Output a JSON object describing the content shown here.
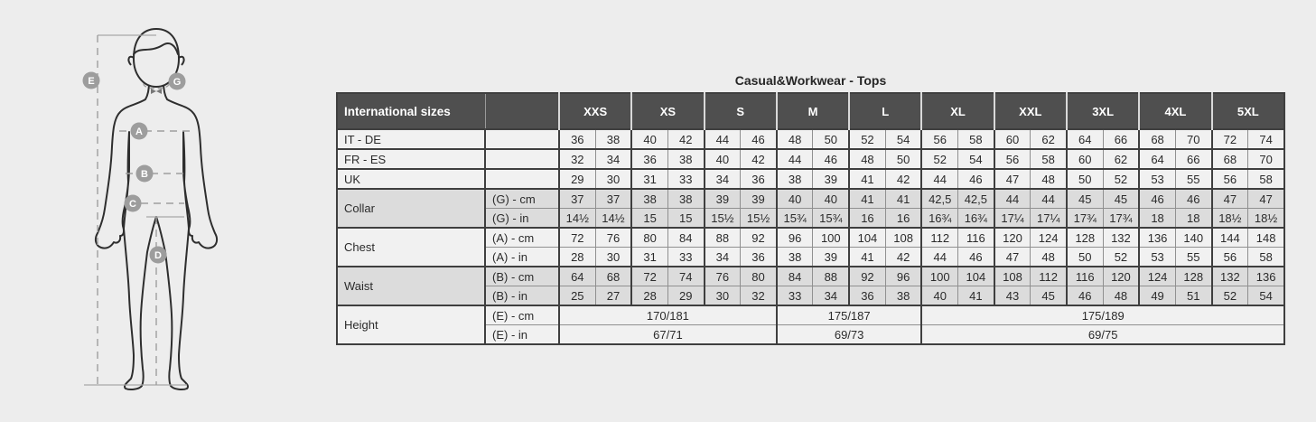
{
  "title": "Casual&Workwear - Tops",
  "colors": {
    "page_bg": "#ededed",
    "header_bg": "#4f4f4f",
    "header_text": "#ffffff",
    "row_light": "#f1f1f1",
    "row_dark": "#dcdcdc",
    "border_dark": "#3f3f3f",
    "border_light": "#909090",
    "figure_line": "#9e9e9e",
    "badge_bg": "#9d9d9d",
    "body_outline": "#2e2e2e"
  },
  "figure": {
    "badges": [
      {
        "letter": "E"
      },
      {
        "letter": "G"
      },
      {
        "letter": "A"
      },
      {
        "letter": "B"
      },
      {
        "letter": "C"
      },
      {
        "letter": "D"
      }
    ]
  },
  "table": {
    "corner_label": "International sizes",
    "sizes": [
      "XXS",
      "XS",
      "S",
      "M",
      "L",
      "XL",
      "XXL",
      "3XL",
      "4XL",
      "5XL"
    ],
    "blocks": [
      {
        "name": "IT - DE",
        "shade": "light",
        "rows": [
          {
            "label": "",
            "values": [
              "36",
              "38",
              "40",
              "42",
              "44",
              "46",
              "48",
              "50",
              "52",
              "54",
              "56",
              "58",
              "60",
              "62",
              "64",
              "66",
              "68",
              "70",
              "72",
              "74"
            ]
          }
        ]
      },
      {
        "name": "FR - ES",
        "shade": "light",
        "rows": [
          {
            "label": "",
            "values": [
              "32",
              "34",
              "36",
              "38",
              "40",
              "42",
              "44",
              "46",
              "48",
              "50",
              "52",
              "54",
              "56",
              "58",
              "60",
              "62",
              "64",
              "66",
              "68",
              "70"
            ]
          }
        ]
      },
      {
        "name": "UK",
        "shade": "light",
        "rows": [
          {
            "label": "",
            "values": [
              "29",
              "30",
              "31",
              "33",
              "34",
              "36",
              "38",
              "39",
              "41",
              "42",
              "44",
              "46",
              "47",
              "48",
              "50",
              "52",
              "53",
              "55",
              "56",
              "58"
            ]
          }
        ]
      },
      {
        "name": "Collar",
        "shade": "dark",
        "rows": [
          {
            "label": "(G) - cm",
            "values": [
              "37",
              "37",
              "38",
              "38",
              "39",
              "39",
              "40",
              "40",
              "41",
              "41",
              "42,5",
              "42,5",
              "44",
              "44",
              "45",
              "45",
              "46",
              "46",
              "47",
              "47"
            ]
          },
          {
            "label": "(G) - in",
            "values": [
              "14½",
              "14½",
              "15",
              "15",
              "15½",
              "15½",
              "15¾",
              "15¾",
              "16",
              "16",
              "16¾",
              "16¾",
              "17¼",
              "17¼",
              "17¾",
              "17¾",
              "18",
              "18",
              "18½",
              "18½"
            ]
          }
        ]
      },
      {
        "name": "Chest",
        "shade": "light",
        "rows": [
          {
            "label": "(A) - cm",
            "values": [
              "72",
              "76",
              "80",
              "84",
              "88",
              "92",
              "96",
              "100",
              "104",
              "108",
              "112",
              "116",
              "120",
              "124",
              "128",
              "132",
              "136",
              "140",
              "144",
              "148"
            ]
          },
          {
            "label": "(A) - in",
            "values": [
              "28",
              "30",
              "31",
              "33",
              "34",
              "36",
              "38",
              "39",
              "41",
              "42",
              "44",
              "46",
              "47",
              "48",
              "50",
              "52",
              "53",
              "55",
              "56",
              "58"
            ]
          }
        ]
      },
      {
        "name": "Waist",
        "shade": "dark",
        "rows": [
          {
            "label": "(B) - cm",
            "values": [
              "64",
              "68",
              "72",
              "74",
              "76",
              "80",
              "84",
              "88",
              "92",
              "96",
              "100",
              "104",
              "108",
              "112",
              "116",
              "120",
              "124",
              "128",
              "132",
              "136"
            ]
          },
          {
            "label": "(B) - in",
            "values": [
              "25",
              "27",
              "28",
              "29",
              "30",
              "32",
              "33",
              "34",
              "36",
              "38",
              "40",
              "41",
              "43",
              "45",
              "46",
              "48",
              "49",
              "51",
              "52",
              "54"
            ]
          }
        ]
      },
      {
        "name": "Height",
        "shade": "light",
        "rows": [
          {
            "label": "(E) - cm",
            "merged": [
              {
                "text": "170/181",
                "span": 6
              },
              {
                "text": "175/187",
                "span": 4
              },
              {
                "text": "175/189",
                "span": 10
              }
            ]
          },
          {
            "label": "(E) - in",
            "merged": [
              {
                "text": "67/71",
                "span": 6
              },
              {
                "text": "69/73",
                "span": 4
              },
              {
                "text": "69/75",
                "span": 10
              }
            ]
          }
        ]
      }
    ]
  }
}
